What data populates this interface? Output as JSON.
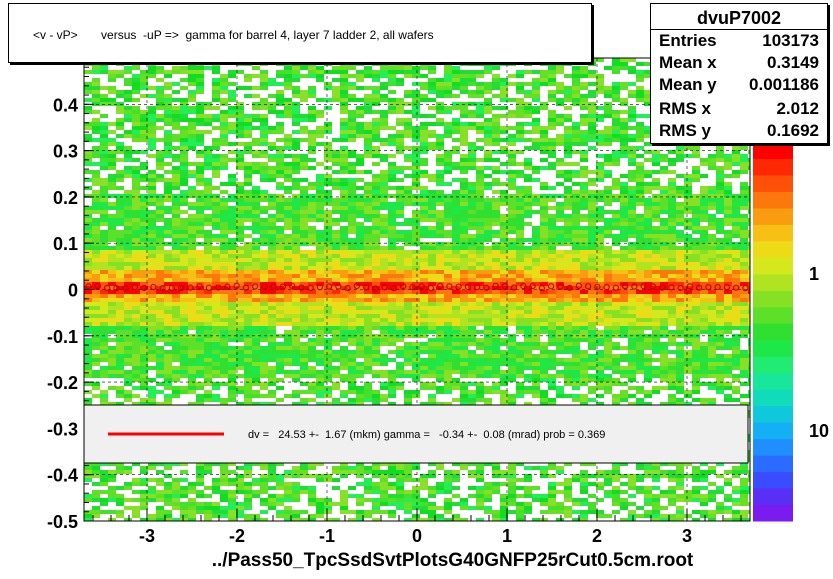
{
  "title": "<v - vP>       versus  -uP =>  gamma for barrel 4, layer 7 ladder 2, all wafers",
  "stats": {
    "name": "dvuP7002",
    "rows": [
      {
        "key": "Entries",
        "value": "103173"
      },
      {
        "key": "Mean x",
        "value": "0.3149"
      },
      {
        "key": "Mean y",
        "value": "0.001186"
      },
      {
        "key": "RMS x",
        "value": "2.012"
      },
      {
        "key": "RMS y",
        "value": "0.1692"
      }
    ]
  },
  "fit_text": "dv =   24.53 +-  1.67 (mkm) gamma =   -0.34 +-  0.08 (mrad) prob = 0.369",
  "footer": "../Pass50_TpcSsdSvtPlotsG40GNFP25rCut0.5cm.root",
  "colors": {
    "fit_line": "#ff0000",
    "background": "#ffffff"
  },
  "chart_data": {
    "type": "heatmap",
    "title": "<v - vP>       versus  -uP =>  gamma for barrel 4, layer 7 ladder 2, all wafers",
    "xlabel": "",
    "ylabel": "",
    "xlim": [
      -3.7,
      3.7
    ],
    "ylim": [
      -0.5,
      0.5
    ],
    "x_ticks": [
      -3,
      -2,
      -1,
      0,
      1,
      2,
      3
    ],
    "y_ticks": [
      -0.5,
      -0.4,
      -0.3,
      -0.2,
      -0.1,
      0,
      0.1,
      0.2,
      0.3,
      0.4
    ],
    "y_tick_labels": [
      "-0.5",
      "-0.4",
      "-0.3",
      "-0.2",
      "-0.1",
      "0",
      "0.1",
      "0.2",
      "0.3",
      "0.4"
    ],
    "x_tick_labels": [
      "-3",
      "-2",
      "-1",
      "0",
      "1",
      "2",
      "3"
    ],
    "colorbar_labels": [
      {
        "value": 10,
        "label": "10"
      },
      {
        "value": 1,
        "label": "1"
      },
      {
        "value": 0.1,
        "label": "10"
      }
    ],
    "profile_y": 0.005,
    "profile_points": 72,
    "fit": {
      "dv_mkm": 24.53,
      "dv_err": 1.67,
      "gamma_mrad": -0.34,
      "gamma_err": 0.08,
      "prob": 0.369
    },
    "grid": true
  }
}
